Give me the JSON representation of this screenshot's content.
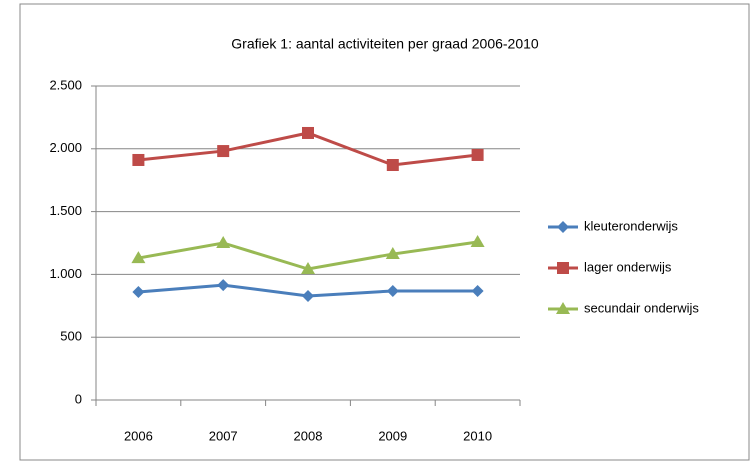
{
  "chart_data": {
    "type": "line",
    "title": "Grafiek 1: aantal activiteiten per graad 2006-2010",
    "categories": [
      "2006",
      "2007",
      "2008",
      "2009",
      "2010"
    ],
    "series": [
      {
        "name": "kleuteronderwijs",
        "color": "#4a7ebb",
        "marker": "diamond",
        "values": [
          860,
          915,
          828,
          868,
          868
        ]
      },
      {
        "name": "lager onderwijs",
        "color": "#be4b48",
        "marker": "square",
        "values": [
          1911,
          1982,
          2126,
          1871,
          1951
        ]
      },
      {
        "name": "secundair onderwijs",
        "color": "#98b954",
        "marker": "triangle",
        "values": [
          1130,
          1250,
          1043,
          1162,
          1258
        ]
      }
    ],
    "ylim": [
      0,
      2500
    ],
    "yticks": [
      0,
      {
        "value": 500,
        "label": "500"
      },
      {
        "value": 1000,
        "label": "1.000"
      },
      {
        "value": 1500,
        "label": "1.500"
      },
      {
        "value": 2000,
        "label": "2.000"
      },
      {
        "value": 2500,
        "label": "2.500"
      }
    ],
    "grid": true,
    "legend": "right"
  }
}
